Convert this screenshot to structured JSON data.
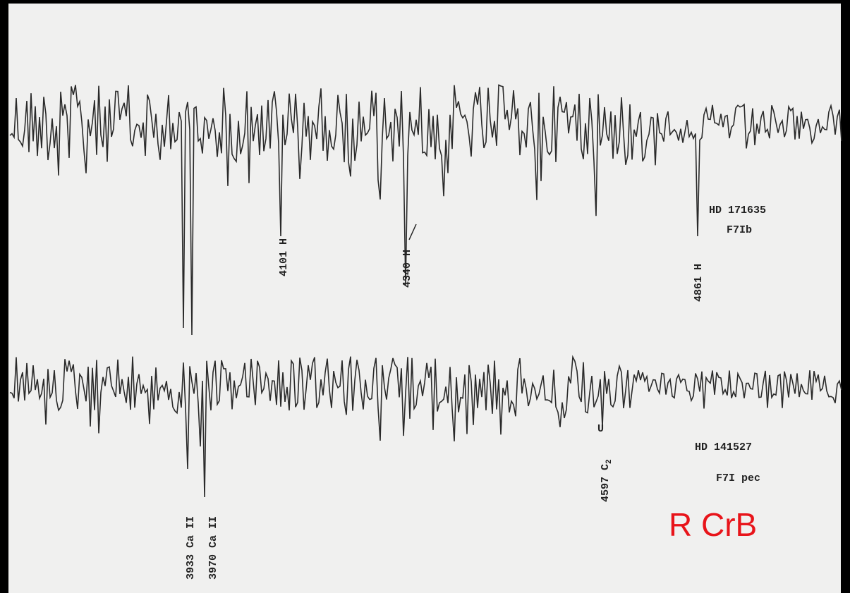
{
  "spectrum_top": {
    "star": "HD 171635",
    "class": "F7Ib",
    "lines": [
      "4101 H",
      "4340 H",
      "4861 H"
    ]
  },
  "spectrum_bottom": {
    "star": "HD 141527",
    "class": "F7I pec",
    "lines": [
      "3933 Ca II",
      "3970 Ca II"
    ],
    "band": {
      "label": "4597 C",
      "subscript": "2"
    },
    "mark": "U"
  },
  "caption": "R CrB"
}
